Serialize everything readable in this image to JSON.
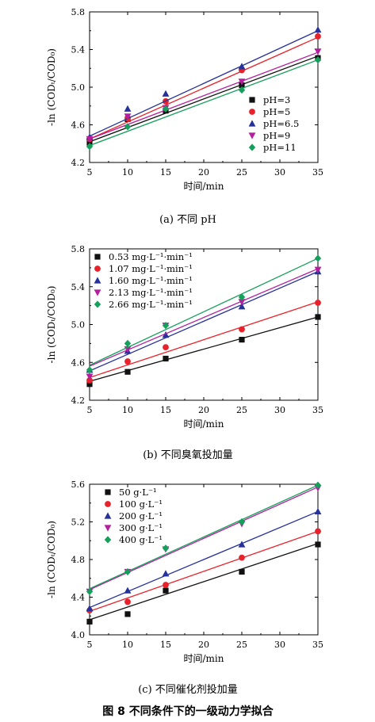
{
  "figure_caption": "图 8   不同条件下的一级动力学拟合",
  "chart_data": [
    {
      "type": "scatter",
      "title": "",
      "caption": "(a)  不同 pH",
      "xlabel": "时间/min",
      "ylabel": "-ln (CODₜ/COD₀)",
      "xlim": [
        5,
        35
      ],
      "ylim": [
        4.2,
        5.8
      ],
      "xticks": [
        "5",
        "10",
        "15",
        "20",
        "25",
        "30",
        "35"
      ],
      "yticks": [
        "4.2",
        "4.6",
        "5.0",
        "5.4",
        "5.8"
      ],
      "legend_position": "bottom-right",
      "x": [
        5,
        10,
        15,
        25,
        35
      ],
      "series": [
        {
          "name": "pH=3",
          "marker": "square",
          "color": "#111111",
          "values": [
            4.41,
            4.66,
            4.75,
            5.02,
            5.31
          ],
          "fit": [
            4.42,
            5.33
          ]
        },
        {
          "name": "pH=5",
          "marker": "circle",
          "color": "#e8222a",
          "values": [
            4.45,
            4.67,
            4.85,
            5.18,
            5.54
          ],
          "fit": [
            4.45,
            5.53
          ]
        },
        {
          "name": "pH=6.5",
          "marker": "triangle",
          "color": "#26319a",
          "values": [
            4.47,
            4.77,
            4.93,
            5.22,
            5.61
          ],
          "fit": [
            4.48,
            5.6
          ]
        },
        {
          "name": "pH=9",
          "marker": "tri-down",
          "color": "#b51e9f",
          "values": [
            4.45,
            4.69,
            4.78,
            5.06,
            5.38
          ],
          "fit": [
            4.45,
            5.37
          ]
        },
        {
          "name": "pH=11",
          "marker": "diamond",
          "color": "#14a05a",
          "values": [
            4.37,
            4.58,
            4.77,
            4.97,
            5.29
          ],
          "fit": [
            4.38,
            5.29
          ]
        }
      ]
    },
    {
      "type": "scatter",
      "title": "",
      "caption": "(b)  不同臭氧投加量",
      "xlabel": "时间/min",
      "ylabel": "-ln (CODₜ/COD₀)",
      "xlim": [
        5,
        35
      ],
      "ylim": [
        4.2,
        5.8
      ],
      "xticks": [
        "5",
        "10",
        "15",
        "20",
        "25",
        "30",
        "35"
      ],
      "yticks": [
        "4.2",
        "4.6",
        "5.0",
        "5.4",
        "5.8"
      ],
      "legend_position": "top-left",
      "x": [
        5,
        10,
        15,
        25,
        35
      ],
      "series": [
        {
          "name": "0.53 mg·L⁻¹·min⁻¹",
          "marker": "square",
          "color": "#111111",
          "values": [
            4.37,
            4.5,
            4.64,
            4.84,
            5.08
          ],
          "fit": [
            4.4,
            5.08
          ]
        },
        {
          "name": "1.07 mg·L⁻¹·min⁻¹",
          "marker": "circle",
          "color": "#e8222a",
          "values": [
            4.41,
            4.61,
            4.76,
            4.95,
            5.23
          ],
          "fit": [
            4.44,
            5.24
          ]
        },
        {
          "name": "1.60 mg·L⁻¹·min⁻¹",
          "marker": "triangle",
          "color": "#26319a",
          "values": [
            4.52,
            4.72,
            4.89,
            5.19,
            5.56
          ],
          "fit": [
            4.51,
            5.56
          ]
        },
        {
          "name": "2.13 mg·L⁻¹·min⁻¹",
          "marker": "tri-down",
          "color": "#b51e9f",
          "values": [
            4.45,
            4.74,
            4.99,
            5.24,
            5.58
          ],
          "fit": [
            4.56,
            5.59
          ]
        },
        {
          "name": "2.66 mg·L⁻¹·min⁻¹",
          "marker": "diamond",
          "color": "#14a05a",
          "values": [
            4.52,
            4.8,
            4.99,
            5.29,
            5.7
          ],
          "fit": [
            4.57,
            5.7
          ]
        }
      ]
    },
    {
      "type": "scatter",
      "title": "",
      "caption": "(c)  不同催化剂投加量",
      "xlabel": "时间/min",
      "ylabel": "-ln (CODₜ/COD₀)",
      "xlim": [
        5,
        35
      ],
      "ylim": [
        4.0,
        5.6
      ],
      "xticks": [
        "5",
        "10",
        "15",
        "20",
        "25",
        "30",
        "35"
      ],
      "yticks": [
        "4.0",
        "4.4",
        "4.8",
        "5.2",
        "5.6"
      ],
      "legend_position": "top-left",
      "x": [
        5,
        10,
        15,
        25,
        35
      ],
      "series": [
        {
          "name": "50 g·L⁻¹",
          "marker": "square",
          "color": "#111111",
          "values": [
            4.14,
            4.22,
            4.47,
            4.67,
            4.96
          ],
          "fit": [
            4.16,
            4.97
          ]
        },
        {
          "name": "100 g·L⁻¹",
          "marker": "circle",
          "color": "#e8222a",
          "values": [
            4.26,
            4.35,
            4.53,
            4.82,
            5.1
          ],
          "fit": [
            4.25,
            5.1
          ]
        },
        {
          "name": "200 g·L⁻¹",
          "marker": "triangle",
          "color": "#26319a",
          "values": [
            4.28,
            4.47,
            4.65,
            4.96,
            5.31
          ],
          "fit": [
            4.29,
            5.31
          ]
        },
        {
          "name": "300 g·L⁻¹",
          "marker": "tri-down",
          "color": "#b51e9f",
          "values": [
            4.46,
            4.67,
            4.91,
            5.18,
            5.56
          ],
          "fit": [
            4.48,
            5.57
          ]
        },
        {
          "name": "400 g·L⁻¹",
          "marker": "diamond",
          "color": "#14a05a",
          "values": [
            4.46,
            4.67,
            4.92,
            5.2,
            5.59
          ],
          "fit": [
            4.49,
            5.59
          ]
        }
      ]
    }
  ]
}
